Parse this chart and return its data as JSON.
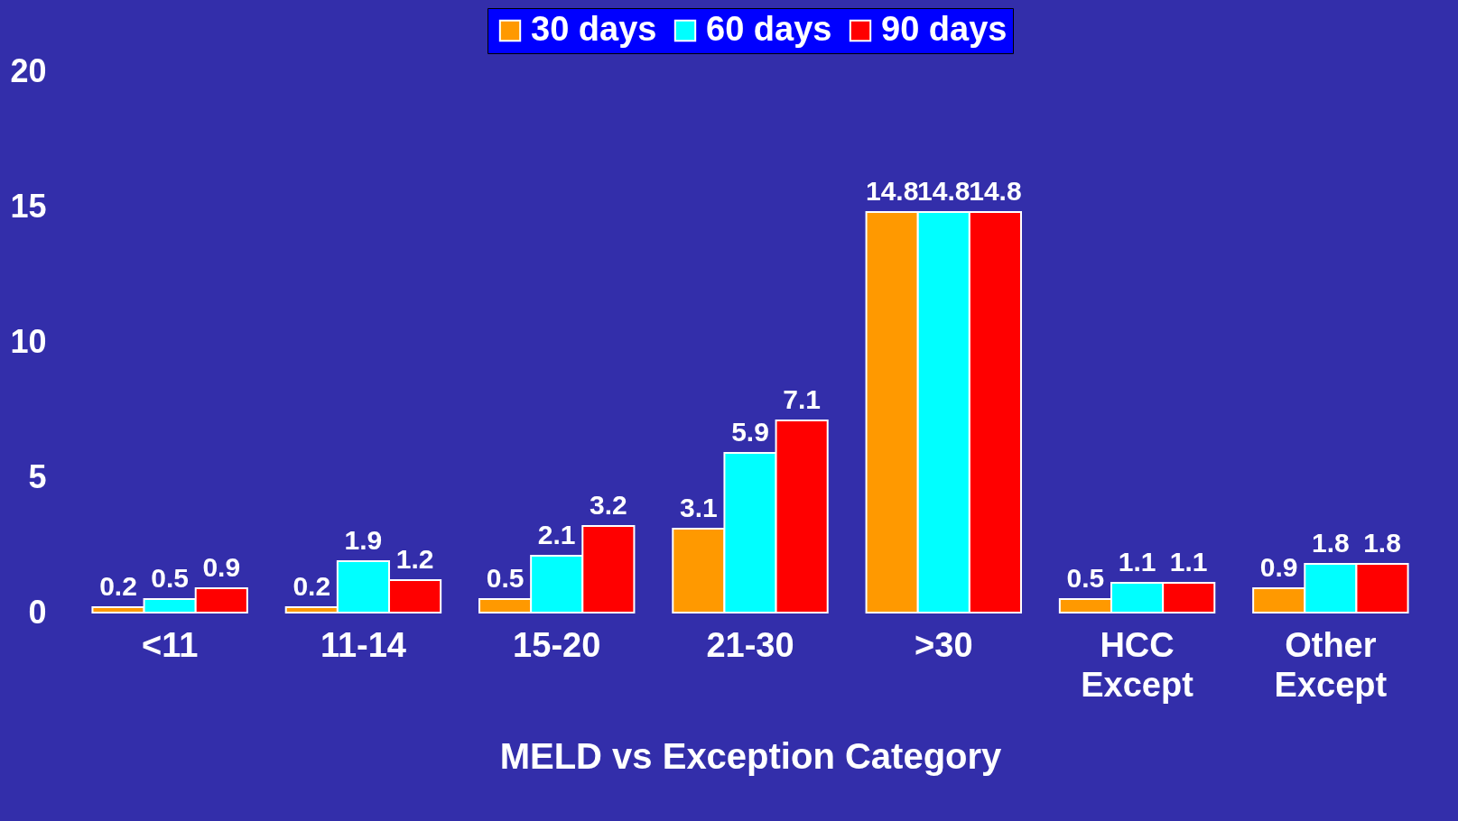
{
  "chart_data": {
    "type": "bar",
    "xlabel": "MELD vs Exception Category",
    "categories": [
      "<11",
      "11-14",
      "15-20",
      "21-30",
      ">30",
      "HCC Except",
      "Other Except"
    ],
    "series": [
      {
        "name": "30 days",
        "color": "#ff9900",
        "values": [
          0.2,
          0.2,
          0.5,
          3.1,
          14.8,
          0.5,
          0.9
        ]
      },
      {
        "name": "60 days",
        "color": "#00ffff",
        "values": [
          0.5,
          1.9,
          2.1,
          5.9,
          14.8,
          1.1,
          1.8
        ]
      },
      {
        "name": "90 days",
        "color": "#ff0000",
        "values": [
          0.9,
          1.2,
          3.2,
          7.1,
          14.8,
          1.1,
          1.8
        ]
      }
    ],
    "ylim": [
      0,
      20
    ],
    "yticks": [
      0,
      5,
      10,
      15,
      20
    ],
    "data_labels": true,
    "grid": false,
    "legend": "top"
  }
}
